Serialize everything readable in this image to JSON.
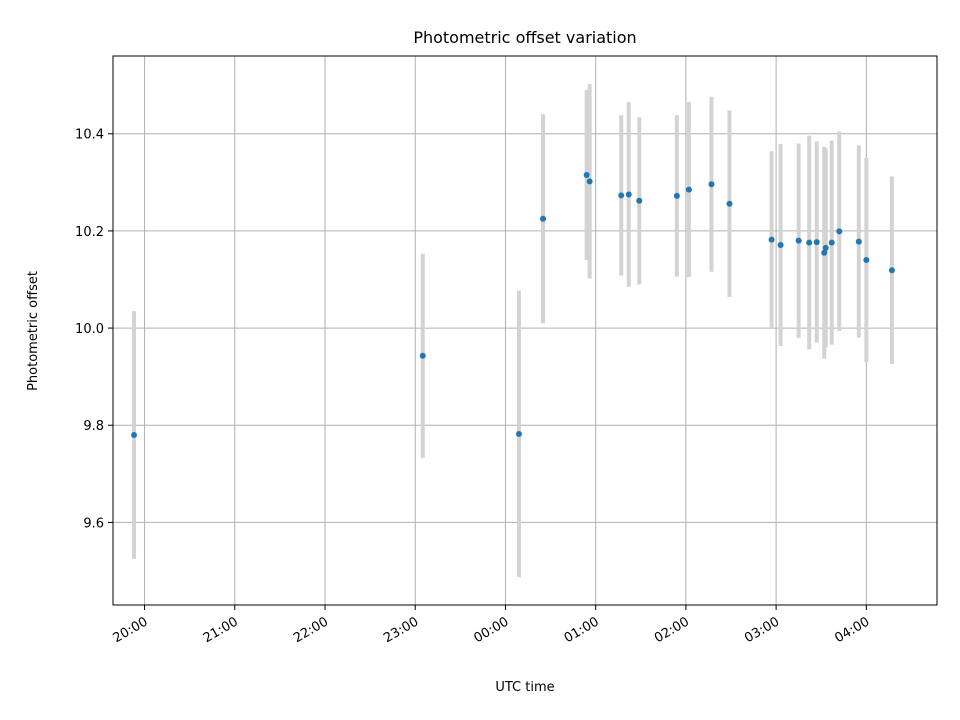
{
  "chart_data": {
    "type": "scatter",
    "title": "Photometric offset variation",
    "xlabel": "UTC time",
    "ylabel": "Photometric offset",
    "x_ticks": [
      "20:00",
      "21:00",
      "22:00",
      "23:00",
      "00:00",
      "01:00",
      "02:00",
      "03:00",
      "04:00"
    ],
    "y_ticks": [
      "9.6",
      "9.8",
      "10.0",
      "10.2",
      "10.4"
    ],
    "ylim": [
      9.43,
      10.56
    ],
    "xlim": [
      "19:39",
      "04:47"
    ],
    "grid": true,
    "marker_color": "#1f77b4",
    "errorbar_color": "#d3d3d3",
    "points": [
      {
        "time": "19:53",
        "y": 9.78,
        "err": 0.255
      },
      {
        "time": "23:05",
        "y": 9.943,
        "err": 0.21
      },
      {
        "time": "00:09",
        "y": 9.782,
        "err": 0.295
      },
      {
        "time": "00:25",
        "y": 10.225,
        "err": 0.215
      },
      {
        "time": "00:54",
        "y": 10.315,
        "err": 0.175
      },
      {
        "time": "00:56",
        "y": 10.302,
        "err": 0.2
      },
      {
        "time": "01:17",
        "y": 10.273,
        "err": 0.165
      },
      {
        "time": "01:22",
        "y": 10.275,
        "err": 0.19
      },
      {
        "time": "01:29",
        "y": 10.262,
        "err": 0.172
      },
      {
        "time": "01:54",
        "y": 10.272,
        "err": 0.166
      },
      {
        "time": "02:02",
        "y": 10.285,
        "err": 0.18
      },
      {
        "time": "02:17",
        "y": 10.296,
        "err": 0.18
      },
      {
        "time": "02:29",
        "y": 10.256,
        "err": 0.192
      },
      {
        "time": "02:57",
        "y": 10.182,
        "err": 0.182
      },
      {
        "time": "03:03",
        "y": 10.171,
        "err": 0.208
      },
      {
        "time": "03:15",
        "y": 10.18,
        "err": 0.2
      },
      {
        "time": "03:22",
        "y": 10.176,
        "err": 0.22
      },
      {
        "time": "03:27",
        "y": 10.177,
        "err": 0.207
      },
      {
        "time": "03:32",
        "y": 10.155,
        "err": 0.218
      },
      {
        "time": "03:33",
        "y": 10.165,
        "err": 0.205
      },
      {
        "time": "03:37",
        "y": 10.176,
        "err": 0.21
      },
      {
        "time": "03:42",
        "y": 10.199,
        "err": 0.205
      },
      {
        "time": "03:55",
        "y": 10.178,
        "err": 0.198
      },
      {
        "time": "04:00",
        "y": 10.14,
        "err": 0.21
      },
      {
        "time": "04:17",
        "y": 10.119,
        "err": 0.193
      }
    ]
  }
}
